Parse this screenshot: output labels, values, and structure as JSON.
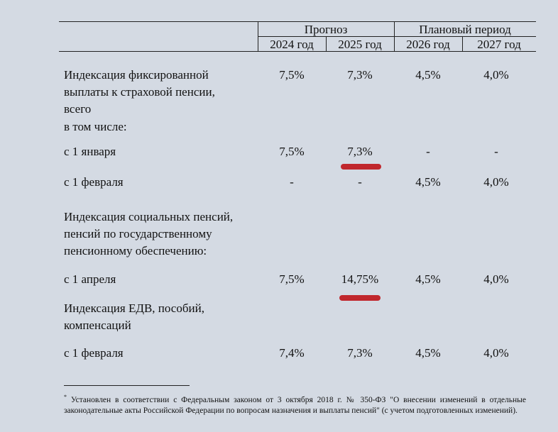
{
  "header": {
    "group_forecast": "Прогноз",
    "group_plan": "Плановый период",
    "years": [
      "2024 год",
      "2025 год",
      "2026 год",
      "2027 год"
    ]
  },
  "rows": [
    {
      "label": "Индексация фиксированной выплаты к страховой пенсии, всего",
      "values": [
        "7,5%",
        "7,3%",
        "4,5%",
        "4,0%"
      ]
    },
    {
      "label": "в том числе:",
      "values": [
        "",
        "",
        "",
        ""
      ]
    },
    {
      "label": "с 1 января",
      "values": [
        "7,5%",
        "7,3%",
        "-",
        "-"
      ]
    },
    {
      "label": "с 1 февраля",
      "values": [
        "-",
        "-",
        "4,5%",
        "4,0%"
      ]
    },
    {
      "label": "Индексация социальных пенсий, пенсий по государственному пенсионному обеспечению:",
      "values": [
        "",
        "",
        "",
        ""
      ]
    },
    {
      "label": "с 1 апреля",
      "values": [
        "7,5%",
        "14,75%",
        "4,5%",
        "4,0%"
      ]
    },
    {
      "label": "Индексация ЕДВ, пособий, компенсаций",
      "values": [
        "",
        "",
        "",
        ""
      ]
    },
    {
      "label": "с 1 февраля",
      "values": [
        "7,4%",
        "7,3%",
        "4,5%",
        "4,0%"
      ]
    }
  ],
  "label_lines": {
    "r0": [
      "Индексация фиксированной",
      "выплаты к страховой пенсии,",
      "всего"
    ],
    "r4": [
      "Индексация социальных пенсий,",
      "пенсий по государственному",
      "пенсионному обеспечению:"
    ],
    "r6": [
      "Индексация ЕДВ, пособий,",
      "компенсаций"
    ]
  },
  "footnote": {
    "marker": "*",
    "text": "Установлен в соответствии с Федеральным законом от 3 октября 2018 г. № 350-ФЗ \"О внесении изменений в отдельные законодательные акты Российской Федерации по вопросам назначения и выплаты пенсий\" (с учетом подготовленных изменений)."
  },
  "highlight_color": "#c0272d"
}
